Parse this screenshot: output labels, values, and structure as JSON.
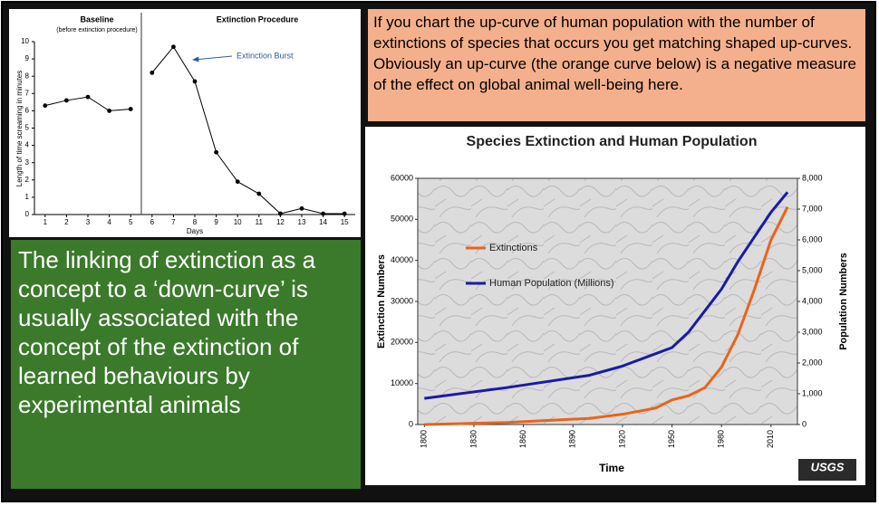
{
  "chart_data": [
    {
      "type": "line",
      "annotation": "Extinction Burst",
      "baseline_note": "(before extinction procedure)",
      "xlabel": "Days",
      "ylabel": "Length of time screaming in minutes",
      "series": [
        {
          "name": "Baseline",
          "color": "#000000",
          "x": [
            1,
            2,
            3,
            4,
            5
          ],
          "values": [
            6.3,
            6.6,
            6.8,
            6.0,
            6.1
          ]
        },
        {
          "name": "Extinction Procedure",
          "color": "#000000",
          "x": [
            6,
            7,
            8,
            9,
            10,
            11,
            12,
            13,
            14,
            15
          ],
          "values": [
            8.2,
            9.7,
            7.7,
            3.6,
            1.9,
            1.2,
            0.05,
            0.35,
            0.05,
            0.05
          ]
        }
      ],
      "xlim": [
        0.5,
        15.5
      ],
      "xticks": [
        1,
        2,
        3,
        4,
        5,
        6,
        7,
        8,
        9,
        10,
        11,
        12,
        13,
        14,
        15
      ],
      "ylim": [
        0,
        10
      ],
      "yticks": [
        0,
        1,
        2,
        3,
        4,
        5,
        6,
        7,
        8,
        9,
        10
      ]
    },
    {
      "type": "line",
      "title": "Species Extinction and Human Population",
      "xlabel": "Time",
      "ylabel": "Extinction Numbers",
      "y2label": "Population Numbers",
      "logo": "USGS",
      "x": [
        1800,
        1850,
        1900,
        1910,
        1920,
        1940,
        1950,
        1960,
        1970,
        1980,
        1990,
        2000,
        2010,
        2020
      ],
      "series": [
        {
          "name": "Extinctions",
          "color": "#e8641c",
          "values": [
            0,
            500,
            1500,
            2000,
            2500,
            4000,
            6000,
            7000,
            9000,
            14000,
            22000,
            33000,
            45000,
            53000
          ]
        },
        {
          "name": "Human Population (Millions)",
          "color": "#1a1aa8",
          "axis": "y2",
          "values": [
            850,
            1200,
            1600,
            1750,
            1900,
            2300,
            2500,
            3000,
            3700,
            4400,
            5300,
            6100,
            6900,
            7550
          ]
        }
      ],
      "xlim": [
        1796,
        2026
      ],
      "xticks": [
        1800,
        1830,
        1860,
        1890,
        1920,
        1950,
        1980,
        2010
      ],
      "ylim": [
        0,
        60000
      ],
      "yticks": [
        0,
        10000,
        20000,
        30000,
        40000,
        50000,
        60000
      ],
      "y2lim": [
        0,
        8000
      ],
      "y2ticks": [
        0,
        {
          "value": 1000,
          "label": "1,000"
        },
        {
          "value": 2000,
          "label": "2,000"
        },
        {
          "value": 3000,
          "label": "3,000"
        },
        {
          "value": 4000,
          "label": "4,000"
        },
        {
          "value": 5000,
          "label": "5,000"
        },
        {
          "value": 6000,
          "label": "6,000"
        },
        {
          "value": 7000,
          "label": "7,000"
        },
        {
          "value": 8000,
          "label": "8,000"
        }
      ]
    }
  ],
  "text_boxes": {
    "top_right": "If you chart the up-curve of human population with the number of extinctions of species that occurs you get matching shaped up-curves.  Obviously an up-curve (the orange curve below) is a negative measure of the effect on global animal well-being here.",
    "bottom_left": "The linking of extinction as a concept to a ‘down-curve’ is usually associated with the concept of the extinction of learned behaviours by experimental animals"
  }
}
